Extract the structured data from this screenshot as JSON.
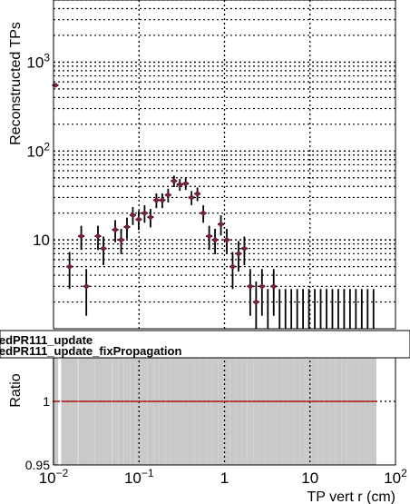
{
  "chart_data": [
    {
      "type": "scatter",
      "panel": "top",
      "title": "",
      "xlabel": "",
      "ylabel": "Reconstructed TPs",
      "xscale": "log",
      "yscale": "log",
      "xlim": [
        0.01,
        100
      ],
      "ylim": [
        1,
        5000
      ],
      "grid": true,
      "y_ticks": [
        {
          "value": 10,
          "base": "10",
          "exp": ""
        },
        {
          "value": 100,
          "base": "10",
          "exp": "2"
        },
        {
          "value": 1000,
          "base": "10",
          "exp": "3"
        }
      ],
      "marker_color": "#7a1f3d",
      "series": [
        {
          "name": "",
          "x": [
            0.0105,
            0.0133,
            0.0154,
            0.0178,
            0.0211,
            0.0242,
            0.0282,
            0.0331,
            0.0384,
            0.0448,
            0.0527,
            0.0618,
            0.0723,
            0.0847,
            0.0992,
            0.1162,
            0.1362,
            0.1597,
            0.1872,
            0.2192,
            0.2568,
            0.3005,
            0.3518,
            0.4115,
            0.4821,
            0.5651,
            0.6621,
            0.7754,
            0.9082,
            1.064,
            1.245,
            1.459,
            1.707,
            2.0,
            2.343,
            2.744,
            3.215,
            3.763,
            4.409,
            5.164,
            6.046,
            7.085,
            8.297,
            9.716,
            11.38,
            13.33,
            15.62,
            18.29,
            21.42,
            25.09,
            29.38,
            34.41,
            40.31,
            47.21,
            55.3
          ],
          "y": [
            550,
            0,
            5,
            0,
            11,
            3,
            0,
            11,
            8,
            0,
            13,
            10,
            14,
            19,
            17,
            20,
            18,
            28,
            28,
            32,
            46,
            42,
            43,
            30,
            33,
            20,
            11,
            10,
            15,
            10,
            5,
            7,
            8,
            3,
            2,
            3,
            0,
            3,
            0,
            0,
            0,
            0,
            0,
            0,
            0,
            0,
            0,
            0,
            0,
            0,
            0,
            0,
            0,
            0,
            0
          ],
          "err_hi": [
            25,
            0,
            2.3,
            0,
            3.4,
            1.7,
            0,
            3.4,
            2.9,
            0,
            3.7,
            3.3,
            3.8,
            4.4,
            4.2,
            4.5,
            4.3,
            5.3,
            5.3,
            5.7,
            6.8,
            6.5,
            6.6,
            5.5,
            5.8,
            4.5,
            3.4,
            3.3,
            3.9,
            3.3,
            2.3,
            2.7,
            2.9,
            1.7,
            1.4,
            1.7,
            1.8,
            1.7,
            1.8,
            1.8,
            1.8,
            1.8,
            1.8,
            1.8,
            1.8,
            1.8,
            1.8,
            1.8,
            1.8,
            1.8,
            1.8,
            1.8,
            1.8,
            1.8,
            1.8
          ],
          "err_lo": [
            24,
            0,
            2.2,
            0,
            3.3,
            1.6,
            0,
            3.3,
            2.8,
            0,
            3.6,
            3.1,
            3.7,
            4.3,
            4.1,
            4.4,
            4.2,
            5.2,
            5.2,
            5.6,
            6.7,
            6.4,
            6.5,
            5.4,
            5.7,
            4.4,
            3.3,
            3.1,
            3.8,
            3.1,
            2.2,
            2.6,
            2.8,
            1.6,
            1.3,
            1.6,
            0,
            1.6,
            0,
            0,
            0,
            0,
            0,
            0,
            0,
            0,
            0,
            0,
            0,
            0,
            0,
            0,
            0,
            0,
            0
          ]
        }
      ]
    },
    {
      "type": "scatter",
      "panel": "bottom",
      "title": "",
      "xlabel": "TP vert r (cm)",
      "ylabel": "Ratio",
      "xscale": "log",
      "xlim": [
        0.01,
        100
      ],
      "ylim": [
        0.95,
        1.05
      ],
      "grid": true,
      "x_ticks": [
        {
          "value": 0.01,
          "base": "10",
          "exp": "−2"
        },
        {
          "value": 0.1,
          "base": "10",
          "exp": "−1"
        },
        {
          "value": 1,
          "base": "1",
          "exp": ""
        },
        {
          "value": 10,
          "base": "10",
          "exp": ""
        },
        {
          "value": 100,
          "base": "10",
          "exp": "2"
        }
      ],
      "y_ticks": [
        {
          "value": 0.95,
          "label": "0.95"
        },
        {
          "value": 1,
          "label": "1"
        }
      ],
      "legend_lines": [
        "...edPR111_update",
        "...edPR111_update_fixPropagation"
      ],
      "band_color": "#c9c9c9",
      "marker_color": "#b22222",
      "series": [
        {
          "name": "",
          "x": [
            0.0105,
            0.0133,
            0.0154,
            0.0178,
            0.0211,
            0.0242,
            0.0282,
            0.0331,
            0.0384,
            0.0448,
            0.0527,
            0.0618,
            0.0723,
            0.0847,
            0.0992,
            0.1162,
            0.1362,
            0.1597,
            0.1872,
            0.2192,
            0.2568,
            0.3005,
            0.3518,
            0.4115,
            0.4821,
            0.5651,
            0.6621,
            0.7754,
            0.9082,
            1.064,
            1.245,
            1.459,
            1.707,
            2.0,
            2.343,
            2.744,
            3.215,
            3.763,
            4.409,
            5.164,
            6.046,
            7.085,
            8.297,
            9.716,
            11.38,
            13.33,
            15.62,
            18.29,
            21.42,
            25.09,
            29.38,
            34.41,
            40.31,
            47.21,
            55.3
          ],
          "y": [
            1,
            1,
            1,
            1,
            1,
            1,
            1,
            1,
            1,
            1,
            1,
            1,
            1,
            1,
            1,
            1,
            1,
            1,
            1,
            1,
            1,
            1,
            1,
            1,
            1,
            1,
            1,
            1,
            1,
            1,
            1,
            1,
            1,
            1,
            1,
            1,
            1,
            1,
            1,
            1,
            1,
            1,
            1,
            1,
            1,
            1,
            1,
            1,
            1,
            1,
            1,
            1,
            1,
            1,
            1
          ]
        }
      ]
    }
  ]
}
